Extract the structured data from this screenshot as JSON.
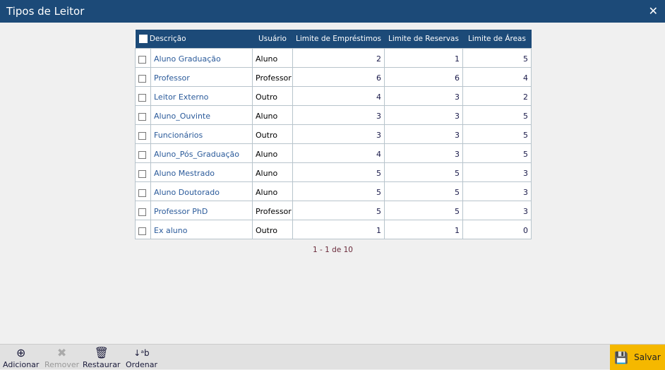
{
  "window": {
    "title": "Tipos de Leitor",
    "close_icon": "close-icon"
  },
  "table": {
    "headers": {
      "descricao": "Descrição",
      "usuario": "Usuário",
      "emprestimos": "Limite de Empréstimos",
      "reservas": "Limite de Reservas",
      "areas": "Limite de Áreas"
    },
    "rows": [
      {
        "descricao": "Aluno Graduação",
        "usuario": "Aluno",
        "emprestimos": "2",
        "reservas": "1",
        "areas": "5"
      },
      {
        "descricao": "Professor",
        "usuario": "Professor",
        "emprestimos": "6",
        "reservas": "6",
        "areas": "4"
      },
      {
        "descricao": "Leitor Externo",
        "usuario": "Outro",
        "emprestimos": "4",
        "reservas": "3",
        "areas": "2"
      },
      {
        "descricao": "Aluno_Ouvinte",
        "usuario": "Aluno",
        "emprestimos": "3",
        "reservas": "3",
        "areas": "5"
      },
      {
        "descricao": "Funcionários",
        "usuario": "Outro",
        "emprestimos": "3",
        "reservas": "3",
        "areas": "5"
      },
      {
        "descricao": "Aluno_Pós_Graduação",
        "usuario": "Aluno",
        "emprestimos": "4",
        "reservas": "3",
        "areas": "5"
      },
      {
        "descricao": "Aluno Mestrado",
        "usuario": "Aluno",
        "emprestimos": "5",
        "reservas": "5",
        "areas": "3"
      },
      {
        "descricao": "Aluno Doutorado",
        "usuario": "Aluno",
        "emprestimos": "5",
        "reservas": "5",
        "areas": "3"
      },
      {
        "descricao": "Professor PhD",
        "usuario": "Professor",
        "emprestimos": "5",
        "reservas": "5",
        "areas": "3"
      },
      {
        "descricao": "Ex aluno",
        "usuario": "Outro",
        "emprestimos": "1",
        "reservas": "1",
        "areas": "0"
      }
    ]
  },
  "pager": {
    "text": "1 - 1 de 10"
  },
  "toolbar": {
    "add": "Adicionar",
    "remove": "Remover",
    "restore": "Restaurar",
    "sort": "Ordenar",
    "save": "Salvar"
  },
  "colors": {
    "header": "#1c4a78",
    "save": "#f5b800"
  }
}
